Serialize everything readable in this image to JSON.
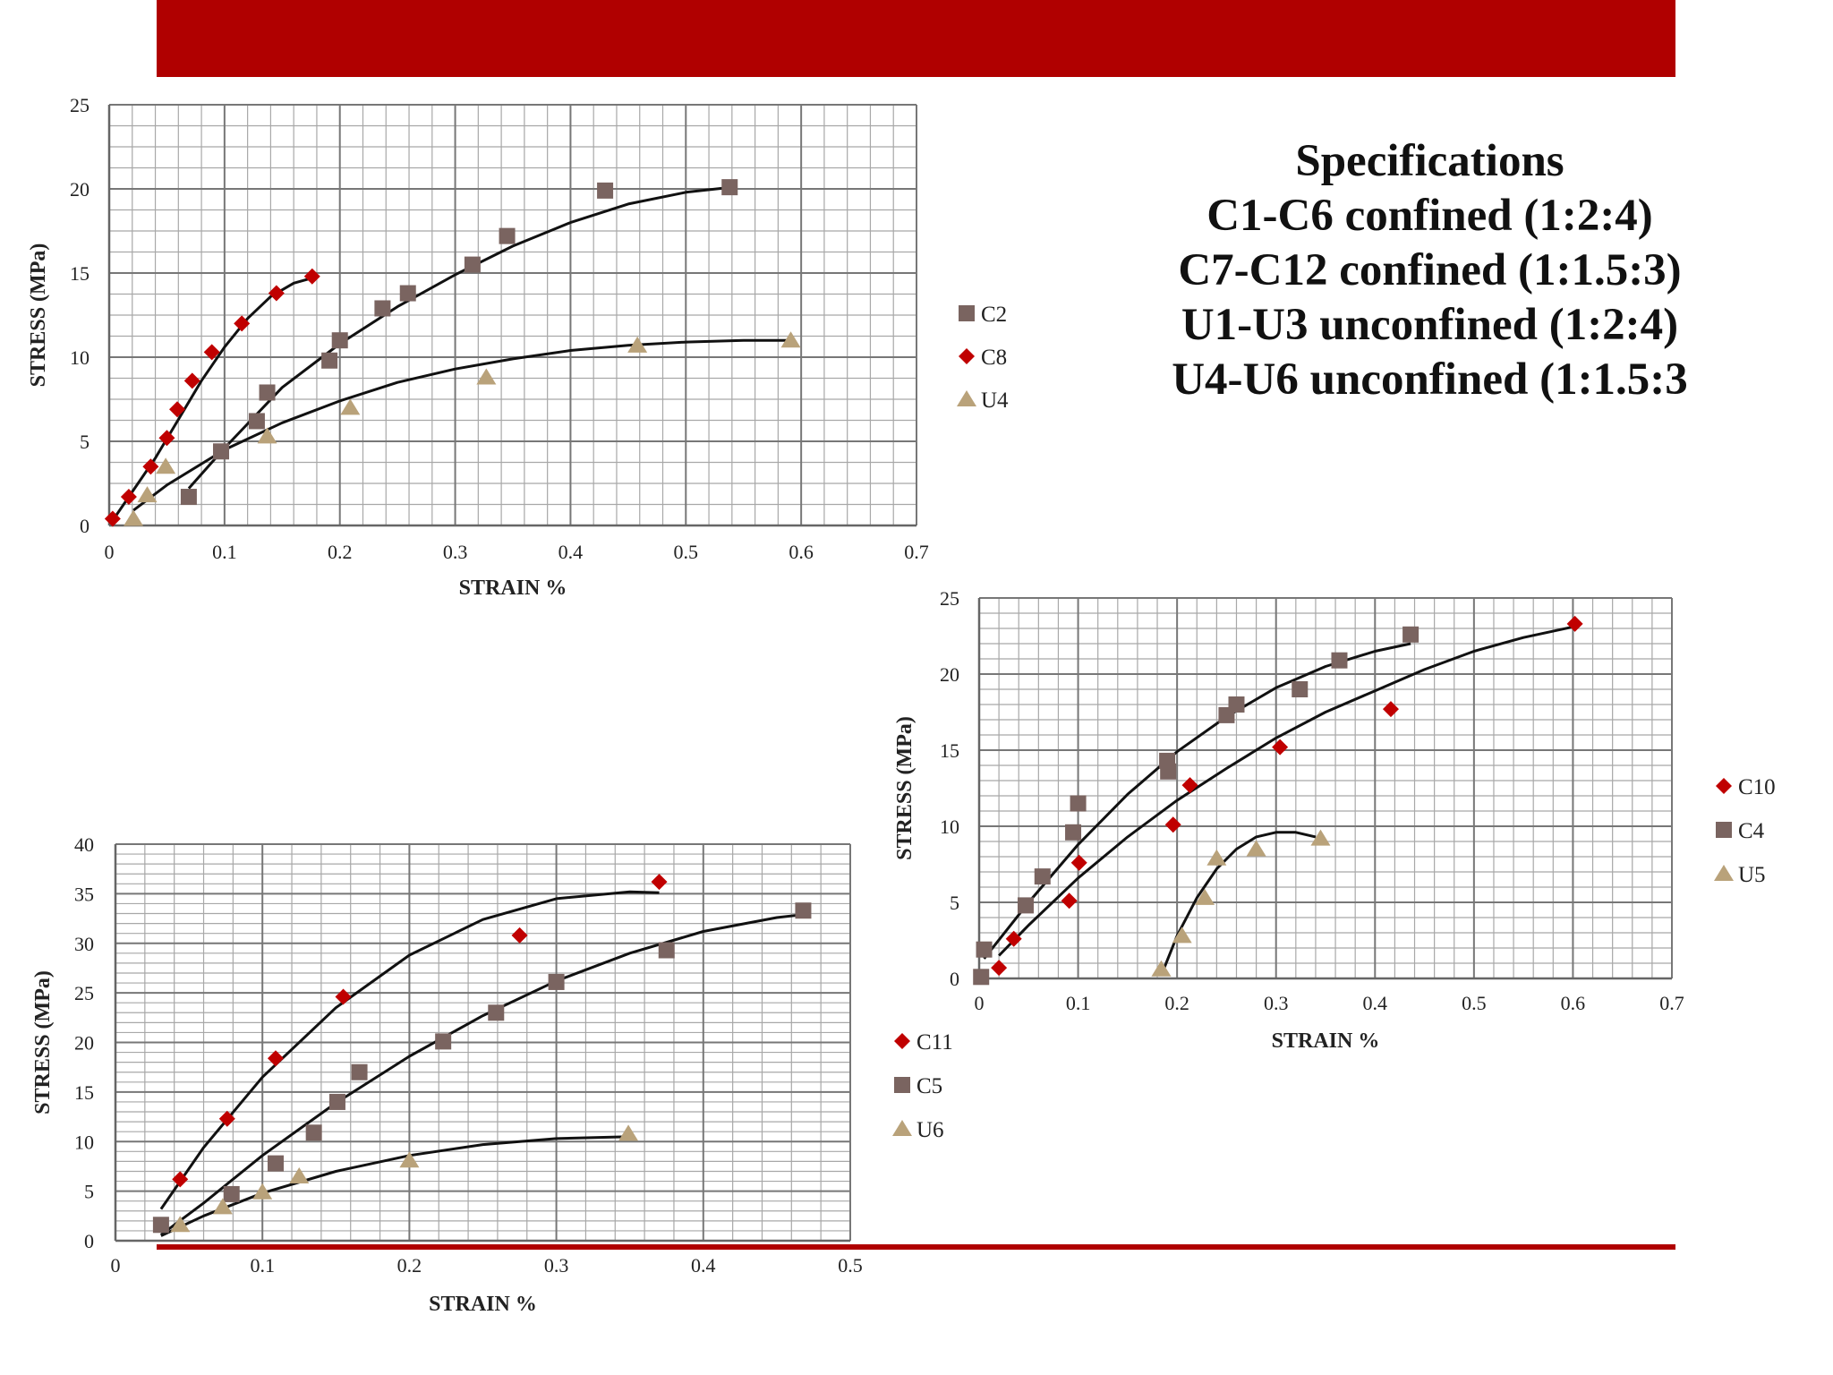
{
  "slide": {
    "accent_color": "#b00000",
    "specifications": {
      "title": "Specifications",
      "lines": [
        "C1-C6 confined (1:2:4)",
        "C7-C12 confined (1:1.5:3)",
        "U1-U3 unconfined (1:2:4)",
        "U4-U6 unconfined (1:1.5:3"
      ]
    }
  },
  "chart_data": [
    {
      "type": "scatter",
      "xlabel": "STRAIN %",
      "ylabel": "STRESS (MPa)",
      "xlim": [
        0,
        0.7
      ],
      "ylim": [
        0,
        25
      ],
      "x_ticks": [
        "0",
        "0.1",
        "0.2",
        "0.3",
        "0.4",
        "0.5",
        "0.6",
        "0.7"
      ],
      "y_ticks": [
        "0",
        "5",
        "10",
        "15",
        "20",
        "25"
      ],
      "grid": true,
      "legend_position": "right",
      "series": [
        {
          "name": "C2",
          "marker": "square",
          "color": "#7a6460",
          "points": [
            [
              0.069,
              1.7
            ],
            [
              0.097,
              4.4
            ],
            [
              0.128,
              6.2
            ],
            [
              0.137,
              7.9
            ],
            [
              0.191,
              9.8
            ],
            [
              0.2,
              11.0
            ],
            [
              0.237,
              12.9
            ],
            [
              0.259,
              13.8
            ],
            [
              0.315,
              15.5
            ],
            [
              0.345,
              17.2
            ],
            [
              0.43,
              19.9
            ],
            [
              0.538,
              20.1
            ]
          ],
          "trend": [
            [
              0.069,
              2.2
            ],
            [
              0.1,
              4.6
            ],
            [
              0.15,
              8.2
            ],
            [
              0.2,
              10.8
            ],
            [
              0.25,
              13.0
            ],
            [
              0.3,
              14.9
            ],
            [
              0.35,
              16.6
            ],
            [
              0.4,
              18.0
            ],
            [
              0.45,
              19.1
            ],
            [
              0.5,
              19.8
            ],
            [
              0.54,
              20.1
            ]
          ]
        },
        {
          "name": "C8",
          "marker": "diamond",
          "color": "#c00000",
          "points": [
            [
              0.003,
              0.4
            ],
            [
              0.017,
              1.7
            ],
            [
              0.036,
              3.5
            ],
            [
              0.05,
              5.2
            ],
            [
              0.059,
              6.9
            ],
            [
              0.072,
              8.6
            ],
            [
              0.089,
              10.3
            ],
            [
              0.115,
              12.0
            ],
            [
              0.145,
              13.8
            ],
            [
              0.176,
              14.8
            ]
          ],
          "trend": [
            [
              0.003,
              0.3
            ],
            [
              0.02,
              2.0
            ],
            [
              0.04,
              4.0
            ],
            [
              0.06,
              6.3
            ],
            [
              0.08,
              8.6
            ],
            [
              0.1,
              10.6
            ],
            [
              0.12,
              12.3
            ],
            [
              0.14,
              13.6
            ],
            [
              0.16,
              14.4
            ],
            [
              0.176,
              14.7
            ]
          ]
        },
        {
          "name": "U4",
          "marker": "triangle",
          "color": "#b9a27a",
          "points": [
            [
              0.021,
              0.4
            ],
            [
              0.033,
              1.8
            ],
            [
              0.049,
              3.5
            ],
            [
              0.137,
              5.3
            ],
            [
              0.209,
              7.0
            ],
            [
              0.327,
              8.8
            ],
            [
              0.458,
              10.7
            ],
            [
              0.591,
              11.0
            ]
          ],
          "trend": [
            [
              0.021,
              0.9
            ],
            [
              0.05,
              2.4
            ],
            [
              0.1,
              4.5
            ],
            [
              0.15,
              6.1
            ],
            [
              0.2,
              7.4
            ],
            [
              0.25,
              8.5
            ],
            [
              0.3,
              9.3
            ],
            [
              0.35,
              9.9
            ],
            [
              0.4,
              10.4
            ],
            [
              0.45,
              10.7
            ],
            [
              0.5,
              10.9
            ],
            [
              0.55,
              11.0
            ],
            [
              0.59,
              11.0
            ]
          ]
        }
      ]
    },
    {
      "type": "scatter",
      "xlabel": "STRAIN %",
      "ylabel": "STRESS (MPa)",
      "xlim": [
        0,
        0.5
      ],
      "ylim": [
        0,
        40
      ],
      "x_ticks": [
        "0",
        "0.1",
        "0.2",
        "0.3",
        "0.4",
        "0.5"
      ],
      "y_ticks": [
        "0",
        "5",
        "10",
        "15",
        "20",
        "25",
        "30",
        "35",
        "40"
      ],
      "grid": true,
      "legend_position": "right",
      "series": [
        {
          "name": "C11",
          "marker": "diamond",
          "color": "#c00000",
          "points": [
            [
              0.044,
              6.2
            ],
            [
              0.076,
              12.3
            ],
            [
              0.109,
              18.4
            ],
            [
              0.155,
              24.6
            ],
            [
              0.275,
              30.8
            ],
            [
              0.37,
              36.2
            ]
          ],
          "trend": [
            [
              0.031,
              3.2
            ],
            [
              0.06,
              9.4
            ],
            [
              0.1,
              16.5
            ],
            [
              0.15,
              23.5
            ],
            [
              0.2,
              28.8
            ],
            [
              0.25,
              32.4
            ],
            [
              0.3,
              34.5
            ],
            [
              0.35,
              35.2
            ],
            [
              0.37,
              35.1
            ]
          ]
        },
        {
          "name": "C5",
          "marker": "square",
          "color": "#7a6460",
          "points": [
            [
              0.031,
              1.6
            ],
            [
              0.079,
              4.7
            ],
            [
              0.109,
              7.8
            ],
            [
              0.135,
              10.9
            ],
            [
              0.151,
              14.0
            ],
            [
              0.166,
              17.0
            ],
            [
              0.223,
              20.1
            ],
            [
              0.259,
              23.0
            ],
            [
              0.3,
              26.1
            ],
            [
              0.375,
              29.3
            ],
            [
              0.468,
              33.3
            ]
          ],
          "trend": [
            [
              0.031,
              0.6
            ],
            [
              0.06,
              3.8
            ],
            [
              0.1,
              8.6
            ],
            [
              0.15,
              13.9
            ],
            [
              0.2,
              18.6
            ],
            [
              0.25,
              22.7
            ],
            [
              0.3,
              26.2
            ],
            [
              0.35,
              29.0
            ],
            [
              0.4,
              31.2
            ],
            [
              0.45,
              32.6
            ],
            [
              0.468,
              32.9
            ]
          ]
        },
        {
          "name": "U6",
          "marker": "triangle",
          "color": "#b9a27a",
          "points": [
            [
              0.044,
              1.6
            ],
            [
              0.073,
              3.4
            ],
            [
              0.1,
              4.9
            ],
            [
              0.125,
              6.5
            ],
            [
              0.2,
              8.1
            ],
            [
              0.349,
              10.8
            ]
          ],
          "trend": [
            [
              0.031,
              0.5
            ],
            [
              0.06,
              2.5
            ],
            [
              0.1,
              4.8
            ],
            [
              0.15,
              7.0
            ],
            [
              0.2,
              8.6
            ],
            [
              0.25,
              9.7
            ],
            [
              0.3,
              10.3
            ],
            [
              0.35,
              10.5
            ]
          ]
        }
      ]
    },
    {
      "type": "scatter",
      "xlabel": "STRAIN %",
      "ylabel": "STRESS (MPa)",
      "xlim": [
        0,
        0.7
      ],
      "ylim": [
        0,
        25
      ],
      "x_ticks": [
        "0",
        "0.1",
        "0.2",
        "0.3",
        "0.4",
        "0.5",
        "0.6",
        "0.7"
      ],
      "y_ticks": [
        "0",
        "5",
        "10",
        "15",
        "20",
        "25"
      ],
      "grid": true,
      "legend_position": "right",
      "series": [
        {
          "name": "C10",
          "marker": "diamond",
          "color": "#c00000",
          "points": [
            [
              0.02,
              0.7
            ],
            [
              0.035,
              2.6
            ],
            [
              0.091,
              5.1
            ],
            [
              0.101,
              7.6
            ],
            [
              0.196,
              10.1
            ],
            [
              0.213,
              12.7
            ],
            [
              0.304,
              15.2
            ],
            [
              0.416,
              17.7
            ],
            [
              0.602,
              23.3
            ]
          ],
          "trend": [
            [
              0.02,
              1.5
            ],
            [
              0.05,
              3.5
            ],
            [
              0.1,
              6.6
            ],
            [
              0.15,
              9.3
            ],
            [
              0.2,
              11.7
            ],
            [
              0.25,
              13.8
            ],
            [
              0.3,
              15.8
            ],
            [
              0.35,
              17.5
            ],
            [
              0.4,
              18.9
            ],
            [
              0.45,
              20.3
            ],
            [
              0.5,
              21.5
            ],
            [
              0.55,
              22.4
            ],
            [
              0.6,
              23.1
            ]
          ]
        },
        {
          "name": "C4",
          "marker": "square",
          "color": "#7a6460",
          "points": [
            [
              0.002,
              0.1
            ],
            [
              0.005,
              1.9
            ],
            [
              0.047,
              4.8
            ],
            [
              0.064,
              6.7
            ],
            [
              0.095,
              9.6
            ],
            [
              0.1,
              11.5
            ],
            [
              0.19,
              14.3
            ],
            [
              0.191,
              13.6
            ],
            [
              0.25,
              17.3
            ],
            [
              0.26,
              18.0
            ],
            [
              0.324,
              19.0
            ],
            [
              0.364,
              20.9
            ],
            [
              0.436,
              22.6
            ]
          ],
          "trend": [
            [
              0.005,
              1.3
            ],
            [
              0.05,
              5.0
            ],
            [
              0.1,
              8.8
            ],
            [
              0.15,
              12.1
            ],
            [
              0.2,
              14.9
            ],
            [
              0.25,
              17.2
            ],
            [
              0.3,
              19.1
            ],
            [
              0.35,
              20.5
            ],
            [
              0.4,
              21.5
            ],
            [
              0.436,
              22.0
            ]
          ]
        },
        {
          "name": "U5",
          "marker": "triangle",
          "color": "#b9a27a",
          "points": [
            [
              0.184,
              0.6
            ],
            [
              0.205,
              2.8
            ],
            [
              0.228,
              5.3
            ],
            [
              0.24,
              7.9
            ],
            [
              0.28,
              8.5
            ],
            [
              0.345,
              9.2
            ]
          ],
          "trend": [
            [
              0.184,
              0.2
            ],
            [
              0.2,
              2.8
            ],
            [
              0.22,
              5.3
            ],
            [
              0.24,
              7.2
            ],
            [
              0.26,
              8.5
            ],
            [
              0.28,
              9.3
            ],
            [
              0.3,
              9.6
            ],
            [
              0.32,
              9.6
            ],
            [
              0.34,
              9.3
            ]
          ]
        }
      ]
    }
  ]
}
